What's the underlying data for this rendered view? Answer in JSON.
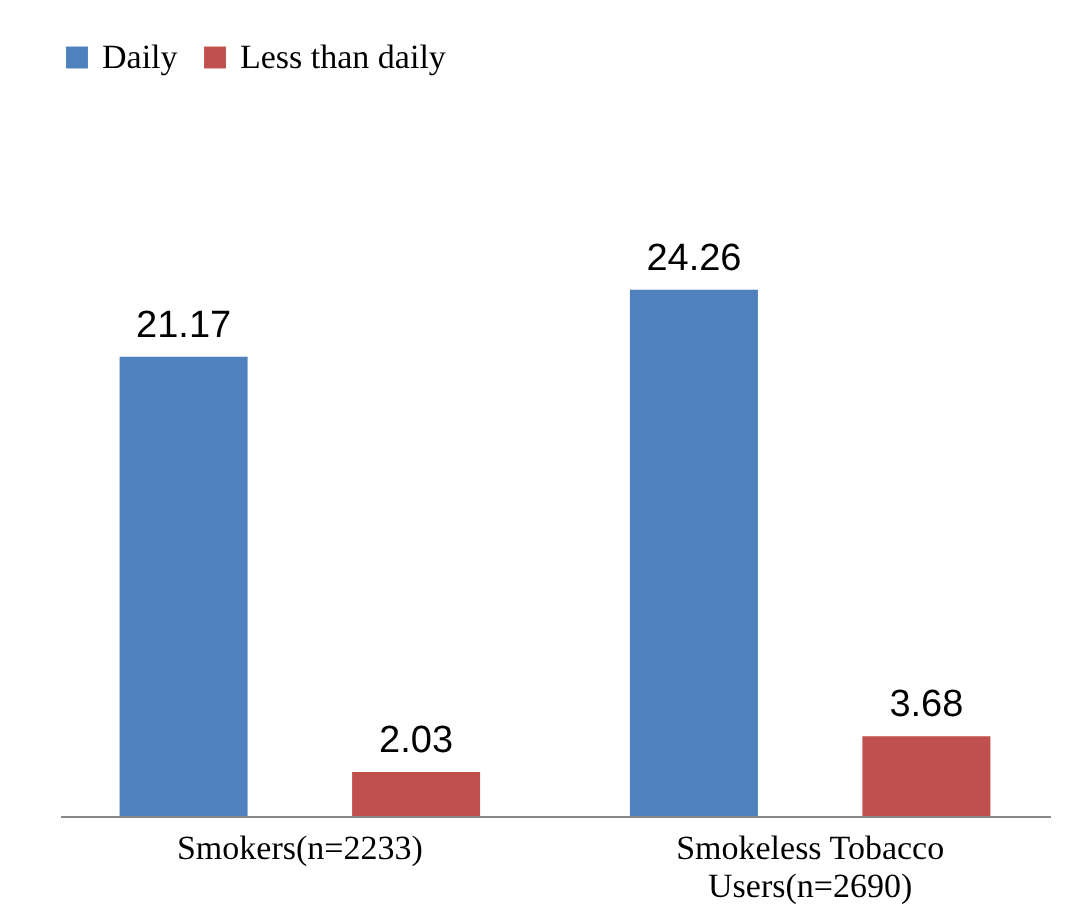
{
  "chart_data": {
    "type": "bar",
    "categories": [
      "Smokers(n=2233)",
      "Smokeless Tobacco Users(n=2690)"
    ],
    "series": [
      {
        "name": "Daily",
        "color": "#4f81bd",
        "values": [
          21.17,
          24.26
        ]
      },
      {
        "name": "Less than daily",
        "color": "#c0504d",
        "values": [
          2.03,
          3.68
        ]
      }
    ],
    "data_labels": true,
    "legend": "top",
    "grid": false
  }
}
